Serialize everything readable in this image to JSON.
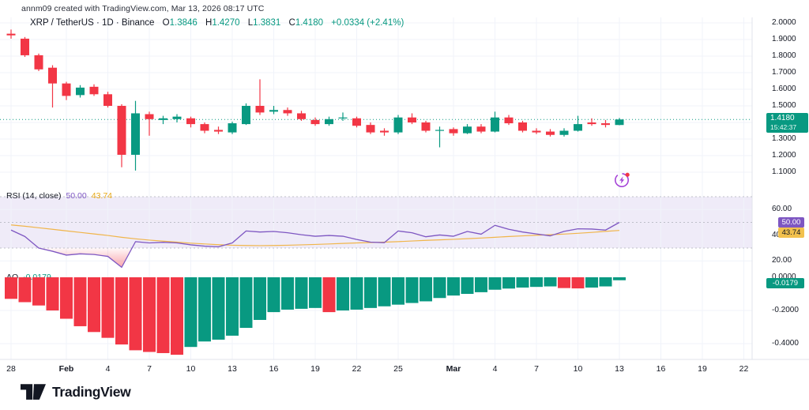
{
  "header": {
    "credit": "annm09 created with TradingView.com, Mar 13, 2026 08:17 UTC"
  },
  "symbol": {
    "title": "XRP / TetherUS · 1D · Binance",
    "ohlc": [
      {
        "k": "O",
        "v": "1.3846"
      },
      {
        "k": "H",
        "v": "1.4270"
      },
      {
        "k": "L",
        "v": "1.3831"
      },
      {
        "k": "C",
        "v": "1.4180"
      }
    ],
    "change": "+0.0334 (+2.41%)"
  },
  "price_axis": {
    "labels": [
      {
        "text": "2.0000",
        "price": 2.0
      },
      {
        "text": "1.9000",
        "price": 1.9
      },
      {
        "text": "1.8000",
        "price": 1.8
      },
      {
        "text": "1.7000",
        "price": 1.7
      },
      {
        "text": "1.6000",
        "price": 1.6
      },
      {
        "text": "1.5000",
        "price": 1.5
      },
      {
        "text": "1.3000",
        "price": 1.3
      },
      {
        "text": "1.2000",
        "price": 1.2
      },
      {
        "text": "1.1000",
        "price": 1.1
      }
    ],
    "last_badge": {
      "price": "1.4180",
      "time": "15:42:37"
    }
  },
  "rsi_panel": {
    "label": "RSI (14, close)",
    "value": "50.00",
    "ma_value": "43.74",
    "value_badge": "50.00",
    "ma_badge": "43.74",
    "axis_labels": [
      {
        "text": "60.00",
        "level": 60
      },
      {
        "text": "40.00",
        "level": 40
      },
      {
        "text": "20.00",
        "level": 20
      }
    ]
  },
  "ao_panel": {
    "label": "AO",
    "value": "-0.0179",
    "badge": "-0.0179",
    "axis_labels": [
      {
        "text": "0.0000",
        "level": 0
      },
      {
        "text": "-0.2000",
        "level": -0.2
      },
      {
        "text": "-0.4000",
        "level": -0.4
      }
    ]
  },
  "time_axis": {
    "ticks": [
      {
        "i": 0,
        "label": "28"
      },
      {
        "i": 4,
        "label": "Feb",
        "bold": true
      },
      {
        "i": 7,
        "label": "4"
      },
      {
        "i": 10,
        "label": "7"
      },
      {
        "i": 13,
        "label": "10"
      },
      {
        "i": 16,
        "label": "13"
      },
      {
        "i": 19,
        "label": "16"
      },
      {
        "i": 22,
        "label": "19"
      },
      {
        "i": 25,
        "label": "22"
      },
      {
        "i": 28,
        "label": "25"
      },
      {
        "i": 32,
        "label": "Mar",
        "bold": true
      },
      {
        "i": 35,
        "label": "4"
      },
      {
        "i": 38,
        "label": "7"
      },
      {
        "i": 41,
        "label": "10"
      },
      {
        "i": 44,
        "label": "13"
      },
      {
        "i": 47,
        "label": "16"
      },
      {
        "i": 50,
        "label": "19"
      },
      {
        "i": 53,
        "label": "22"
      }
    ]
  },
  "footer": {
    "logo_text": "TradingView"
  },
  "colors": {
    "up": "#089981",
    "down": "#F23645",
    "rsi_line": "#7E57C2",
    "rsi_ma": "#F0B54A",
    "rsi_band": "rgba(126,87,194,0.12)",
    "dashed_level": "#b2b5be",
    "grid": "#f0f3fa",
    "separator": "#e0e3eb",
    "text": "#131722",
    "flash_purple": "#A544D8",
    "oversold_fill": "#F23645"
  },
  "chart_data": {
    "type": "candlestick",
    "title": "XRP / TetherUS · 1D · Binance",
    "interval": "1D",
    "last_price": 1.418,
    "countdown": "15:42:37",
    "price_ylim": [
      1.06,
      2.03
    ],
    "x_tick_labels": [
      "28",
      "Feb",
      "4",
      "7",
      "10",
      "13",
      "16",
      "19",
      "22",
      "25",
      "Mar",
      "4",
      "7",
      "10",
      "13",
      "16",
      "19",
      "22"
    ],
    "dates": [
      "2026-01-28",
      "2026-01-29",
      "2026-01-30",
      "2026-01-31",
      "2026-02-01",
      "2026-02-02",
      "2026-02-03",
      "2026-02-04",
      "2026-02-05",
      "2026-02-06",
      "2026-02-07",
      "2026-02-08",
      "2026-02-09",
      "2026-02-10",
      "2026-02-11",
      "2026-02-12",
      "2026-02-13",
      "2026-02-14",
      "2026-02-15",
      "2026-02-16",
      "2026-02-17",
      "2026-02-18",
      "2026-02-19",
      "2026-02-20",
      "2026-02-21",
      "2026-02-22",
      "2026-02-23",
      "2026-02-24",
      "2026-02-25",
      "2026-02-26",
      "2026-02-27",
      "2026-02-28",
      "2026-03-01",
      "2026-03-02",
      "2026-03-03",
      "2026-03-04",
      "2026-03-05",
      "2026-03-06",
      "2026-03-07",
      "2026-03-08",
      "2026-03-09",
      "2026-03-10",
      "2026-03-11",
      "2026-03-12",
      "2026-03-13"
    ],
    "candles_ohlc": [
      [
        1.935,
        1.96,
        1.905,
        1.925
      ],
      [
        1.905,
        1.915,
        1.795,
        1.805
      ],
      [
        1.805,
        1.815,
        1.71,
        1.72
      ],
      [
        1.73,
        1.745,
        1.49,
        1.635
      ],
      [
        1.635,
        1.645,
        1.535,
        1.56
      ],
      [
        1.565,
        1.625,
        1.55,
        1.61
      ],
      [
        1.615,
        1.63,
        1.56,
        1.57
      ],
      [
        1.57,
        1.585,
        1.49,
        1.5
      ],
      [
        1.5,
        1.51,
        1.13,
        1.205
      ],
      [
        1.205,
        1.53,
        1.11,
        1.455
      ],
      [
        1.45,
        1.465,
        1.32,
        1.42
      ],
      [
        1.415,
        1.44,
        1.39,
        1.425
      ],
      [
        1.42,
        1.45,
        1.4,
        1.435
      ],
      [
        1.425,
        1.435,
        1.37,
        1.39
      ],
      [
        1.39,
        1.4,
        1.335,
        1.35
      ],
      [
        1.355,
        1.375,
        1.33,
        1.345
      ],
      [
        1.34,
        1.405,
        1.33,
        1.395
      ],
      [
        1.39,
        1.515,
        1.385,
        1.5
      ],
      [
        1.5,
        1.66,
        1.445,
        1.46
      ],
      [
        1.465,
        1.5,
        1.45,
        1.475
      ],
      [
        1.475,
        1.49,
        1.44,
        1.455
      ],
      [
        1.455,
        1.47,
        1.41,
        1.42
      ],
      [
        1.415,
        1.43,
        1.38,
        1.39
      ],
      [
        1.39,
        1.435,
        1.38,
        1.42
      ],
      [
        1.425,
        1.46,
        1.41,
        1.43
      ],
      [
        1.425,
        1.435,
        1.37,
        1.38
      ],
      [
        1.385,
        1.4,
        1.33,
        1.34
      ],
      [
        1.35,
        1.365,
        1.32,
        1.34
      ],
      [
        1.34,
        1.445,
        1.33,
        1.43
      ],
      [
        1.43,
        1.455,
        1.39,
        1.4
      ],
      [
        1.4,
        1.41,
        1.34,
        1.35
      ],
      [
        1.35,
        1.375,
        1.25,
        1.355
      ],
      [
        1.36,
        1.37,
        1.32,
        1.335
      ],
      [
        1.335,
        1.39,
        1.33,
        1.375
      ],
      [
        1.375,
        1.39,
        1.335,
        1.345
      ],
      [
        1.345,
        1.465,
        1.34,
        1.43
      ],
      [
        1.43,
        1.445,
        1.385,
        1.395
      ],
      [
        1.4,
        1.41,
        1.34,
        1.35
      ],
      [
        1.35,
        1.365,
        1.33,
        1.34
      ],
      [
        1.345,
        1.36,
        1.315,
        1.325
      ],
      [
        1.325,
        1.365,
        1.315,
        1.35
      ],
      [
        1.35,
        1.44,
        1.345,
        1.39
      ],
      [
        1.4,
        1.425,
        1.38,
        1.39
      ],
      [
        1.395,
        1.415,
        1.37,
        1.385
      ],
      [
        1.3846,
        1.427,
        1.3831,
        1.418
      ]
    ],
    "indicators": {
      "rsi": {
        "name": "RSI (14, close)",
        "current": 50.0,
        "ma_current": 43.74,
        "levels": [
          70,
          50,
          30
        ],
        "values": [
          44,
          39,
          30,
          27.5,
          24.5,
          25.5,
          25,
          23.5,
          15,
          35,
          34,
          34.5,
          34,
          32.5,
          31.5,
          31,
          34,
          43.3,
          42.5,
          42.9,
          41.9,
          40.4,
          39.2,
          39.8,
          39.2,
          36.7,
          34.6,
          34.2,
          43.3,
          41.9,
          38.8,
          40.2,
          39.2,
          42.9,
          40.8,
          47.7,
          44.6,
          42.5,
          41,
          39.5,
          43,
          45,
          44.8,
          44,
          50
        ],
        "ma_values": [
          48,
          47,
          45.8,
          44.6,
          43.4,
          42.2,
          41,
          39.8,
          38.4,
          37.2,
          36.2,
          35.4,
          34.6,
          33.8,
          33.2,
          32.6,
          32.2,
          32,
          31.9,
          32,
          32.2,
          32.5,
          32.8,
          33.2,
          33.6,
          34,
          34.3,
          34.6,
          35,
          35.5,
          36,
          36.4,
          36.8,
          37.3,
          37.8,
          38.4,
          39,
          39.5,
          40,
          40.4,
          40.9,
          41.5,
          42.2,
          43,
          43.74
        ]
      },
      "ao": {
        "name": "AO",
        "current": -0.0179,
        "values": [
          -0.13,
          -0.15,
          -0.17,
          -0.2,
          -0.25,
          -0.295,
          -0.33,
          -0.365,
          -0.405,
          -0.44,
          -0.45,
          -0.457,
          -0.467,
          -0.42,
          -0.387,
          -0.376,
          -0.352,
          -0.305,
          -0.257,
          -0.21,
          -0.195,
          -0.19,
          -0.185,
          -0.21,
          -0.2,
          -0.195,
          -0.185,
          -0.175,
          -0.165,
          -0.155,
          -0.145,
          -0.125,
          -0.11,
          -0.1,
          -0.09,
          -0.075,
          -0.068,
          -0.062,
          -0.058,
          -0.055,
          -0.065,
          -0.067,
          -0.062,
          -0.055,
          -0.0179
        ]
      }
    }
  }
}
